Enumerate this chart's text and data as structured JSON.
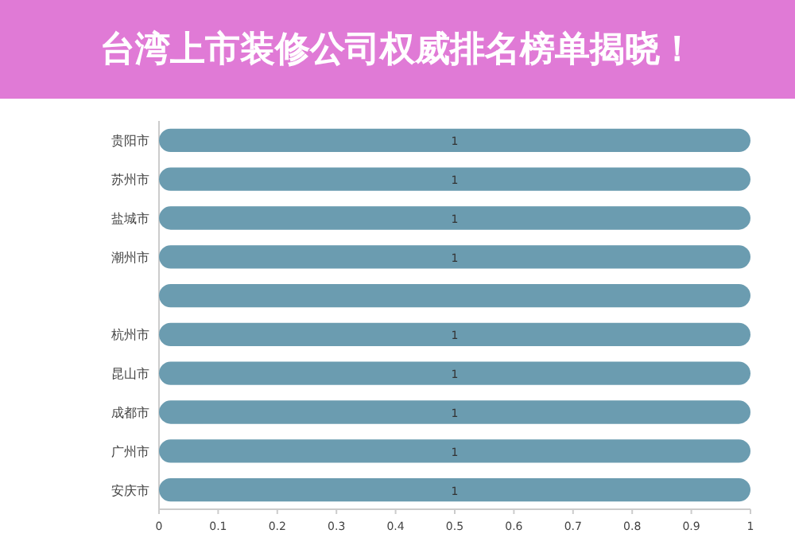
{
  "chart_data": {
    "type": "bar",
    "orientation": "horizontal",
    "title": "台湾上市装修公司权威排名榜单揭晓！",
    "categories": [
      "贵阳市",
      "苏州市",
      "盐城市",
      "潮州市",
      null,
      "杭州市",
      "昆山市",
      "成都市",
      "广州市",
      "安庆市"
    ],
    "values": [
      1,
      1,
      1,
      1,
      1,
      1,
      1,
      1,
      1,
      1
    ],
    "value_labels": [
      "1",
      "1",
      "1",
      "1",
      null,
      "1",
      "1",
      "1",
      "1",
      "1"
    ],
    "color": "#6b9cb0",
    "xlim": [
      0,
      1
    ],
    "xticks": [
      0,
      0.1,
      0.2,
      0.3,
      0.4,
      0.5,
      0.6,
      0.7,
      0.8,
      0.9,
      1
    ]
  }
}
